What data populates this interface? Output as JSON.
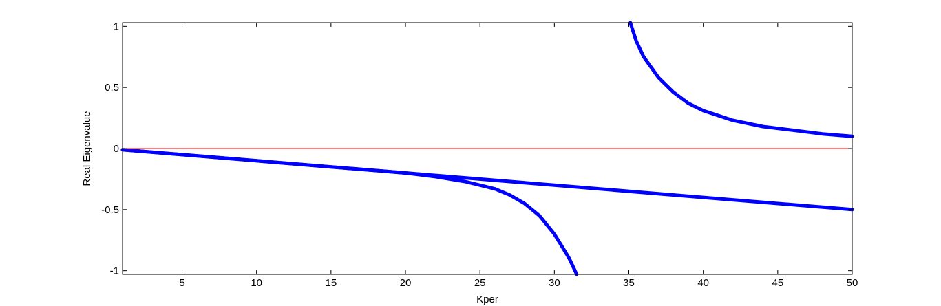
{
  "chart_data": {
    "type": "line",
    "title": "",
    "xlabel": "Kper",
    "ylabel": "Real Eigenvalue",
    "xlim": [
      1,
      50
    ],
    "ylim": [
      -1.03,
      1.03
    ],
    "grid": false,
    "legend": "none",
    "x_ticks": [
      5,
      10,
      15,
      20,
      25,
      30,
      35,
      40,
      45,
      50
    ],
    "x_tick_labels": [
      "5",
      "10",
      "15",
      "20",
      "25",
      "30",
      "35",
      "40",
      "45",
      "50"
    ],
    "y_ticks": [
      -1,
      -0.5,
      0,
      0.5,
      1
    ],
    "y_tick_labels": [
      "-1",
      "-0.5",
      "0",
      "0.5",
      "1"
    ],
    "colors": {
      "series": "#0000ff",
      "reference": "#ff0000",
      "axes": "#000000"
    },
    "series": [
      {
        "x": [
          1,
          5,
          10,
          15,
          20,
          22,
          24,
          26,
          27,
          28,
          29,
          30,
          30.5,
          31,
          31.5
        ],
        "values": [
          -0.01,
          -0.05,
          -0.1,
          -0.15,
          -0.2,
          -0.23,
          -0.27,
          -0.33,
          -0.38,
          -0.45,
          -0.55,
          -0.7,
          -0.8,
          -0.9,
          -1.03
        ]
      },
      {
        "x": [
          1,
          10,
          20,
          30,
          40,
          50
        ],
        "values": [
          -0.01,
          -0.1,
          -0.2,
          -0.3,
          -0.4,
          -0.5
        ]
      },
      {
        "x": [
          35.1,
          35.5,
          36,
          37,
          38,
          39,
          40,
          42,
          44,
          46,
          48,
          50
        ],
        "values": [
          1.03,
          0.88,
          0.75,
          0.58,
          0.46,
          0.37,
          0.31,
          0.23,
          0.18,
          0.15,
          0.12,
          0.1
        ]
      },
      {
        "x": [
          1,
          50
        ],
        "values": [
          0,
          0
        ]
      }
    ]
  }
}
